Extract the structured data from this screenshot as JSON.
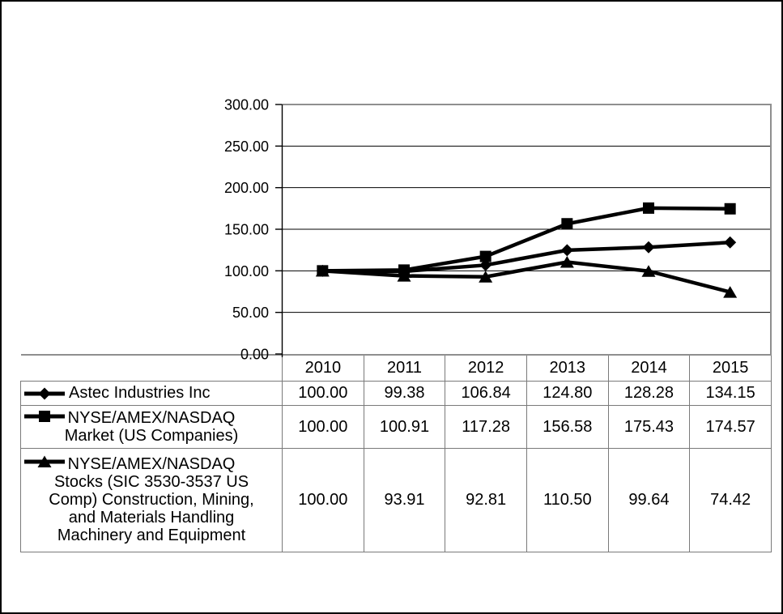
{
  "chart_data": {
    "type": "line",
    "title": "",
    "xlabel": "",
    "ylabel": "",
    "categories": [
      "2010",
      "2011",
      "2012",
      "2013",
      "2014",
      "2015"
    ],
    "series": [
      {
        "name": "Astec Industries Inc",
        "marker": "diamond",
        "values": [
          100.0,
          99.38,
          106.84,
          124.8,
          128.28,
          134.15
        ],
        "label_lines": [
          "Astec Industries Inc"
        ]
      },
      {
        "name": "NYSE/AMEX/NASDAQ Market (US Companies)",
        "marker": "square",
        "values": [
          100.0,
          100.91,
          117.28,
          156.58,
          175.43,
          174.57
        ],
        "label_lines": [
          "NYSE/AMEX/NASDAQ",
          "Market (US Companies)"
        ]
      },
      {
        "name": "NYSE/AMEX/NASDAQ Stocks (SIC 3530-3537 US Comp) Construction, Mining, and Materials Handling Machinery and Equipment",
        "marker": "triangle",
        "values": [
          100.0,
          93.91,
          92.81,
          110.5,
          99.64,
          74.42
        ],
        "label_lines": [
          "NYSE/AMEX/NASDAQ",
          "Stocks (SIC 3530-3537 US",
          "Comp) Construction, Mining,",
          "and Materials Handling",
          "Machinery and Equipment"
        ]
      }
    ],
    "ylim": [
      0,
      300
    ],
    "ytick_step": 50,
    "ytick_labels": [
      "0.00",
      "50.00",
      "100.00",
      "150.00",
      "200.00",
      "250.00",
      "300.00"
    ],
    "grid": true,
    "legend_position": "table-left",
    "colors": {
      "series": "#000000",
      "gridline": "#000000",
      "plot_border": "#8f8f8f",
      "table_border": "#7a7a7a",
      "text": "#000000",
      "background": "#ffffff"
    }
  }
}
